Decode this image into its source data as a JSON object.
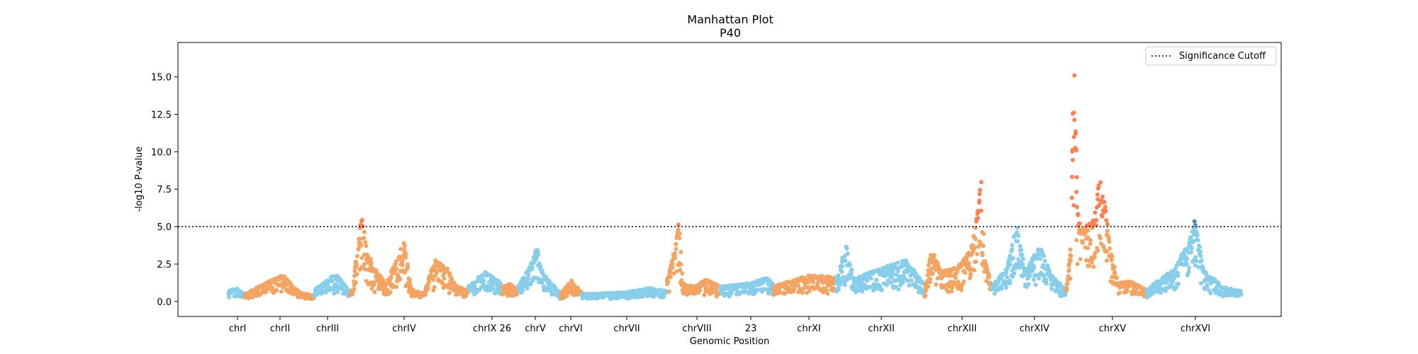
{
  "chart_data": {
    "type": "scatter",
    "title": "Manhattan Plot",
    "subtitle": "P40",
    "xlabel": "Genomic Position",
    "ylabel": "-log10 P-value",
    "ylim": [
      -1.0,
      17.3
    ],
    "yticks": [
      "0.0",
      "2.5",
      "5.0",
      "7.5",
      "10.0",
      "12.5",
      "15.0"
    ],
    "significance_cutoff": 5.0,
    "legend": {
      "label": "Significance Cutoff",
      "position": "top-right",
      "style": "dotted"
    },
    "grid": false,
    "colors": {
      "odd_chrom": "#87CEEB",
      "even_chrom": "#F4A460",
      "odd_significant": "#4682B4",
      "even_significant": "#FF7F50",
      "cutoff_line": "#000000"
    },
    "chromosomes": [
      {
        "label": "chrI",
        "base": 0.5,
        "profile": [
          [
            0,
            0.7
          ],
          [
            0.5,
            0.9
          ],
          [
            1,
            0.5
          ]
        ]
      },
      {
        "label": "chrII",
        "base": 0.5,
        "profile": [
          [
            0,
            0.5
          ],
          [
            0.3,
            1.2
          ],
          [
            0.55,
            1.8
          ],
          [
            0.8,
            0.6
          ],
          [
            1,
            0.4
          ]
        ]
      },
      {
        "label": "chrIII",
        "base": 0.5,
        "profile": [
          [
            0,
            0.8
          ],
          [
            0.3,
            1.3
          ],
          [
            0.6,
            1.9
          ],
          [
            1,
            0.6
          ]
        ]
      },
      {
        "label": "chrIV",
        "base": 0.6,
        "profile": [
          [
            0,
            0.5
          ],
          [
            0.05,
            3.0
          ],
          [
            0.09,
            5.7
          ],
          [
            0.14,
            3.2
          ],
          [
            0.22,
            2.0
          ],
          [
            0.3,
            1.2
          ],
          [
            0.4,
            3.0
          ],
          [
            0.45,
            4.0
          ],
          [
            0.52,
            0.8
          ],
          [
            0.62,
            0.5
          ],
          [
            0.72,
            2.8
          ],
          [
            0.82,
            2.2
          ],
          [
            0.9,
            1.0
          ],
          [
            1,
            0.8
          ]
        ]
      },
      {
        "label": "chrIX",
        "base": 0.5,
        "profile": [
          [
            0,
            1.0
          ],
          [
            0.5,
            2.0
          ],
          [
            1,
            1.2
          ]
        ]
      },
      {
        "label": "26",
        "base": 0.5,
        "profile": [
          [
            0,
            1.0
          ],
          [
            0.5,
            1.2
          ],
          [
            1,
            0.8
          ]
        ]
      },
      {
        "label": "chrV",
        "base": 0.5,
        "profile": [
          [
            0,
            1.0
          ],
          [
            0.3,
            2.5
          ],
          [
            0.45,
            3.6
          ],
          [
            0.6,
            1.8
          ],
          [
            1,
            0.6
          ]
        ]
      },
      {
        "label": "chrVI",
        "base": 0.5,
        "profile": [
          [
            0,
            0.5
          ],
          [
            0.5,
            1.4
          ],
          [
            1,
            0.6
          ]
        ]
      },
      {
        "label": "chrVII",
        "base": 0.4,
        "profile": [
          [
            0,
            0.5
          ],
          [
            0.5,
            0.6
          ],
          [
            0.8,
            0.9
          ],
          [
            1,
            0.7
          ]
        ]
      },
      {
        "label": "chrVIII",
        "base": 0.5,
        "profile": [
          [
            0,
            1.5
          ],
          [
            0.15,
            3.5
          ],
          [
            0.22,
            5.3
          ],
          [
            0.3,
            1.2
          ],
          [
            0.5,
            1.0
          ],
          [
            0.75,
            1.5
          ],
          [
            1,
            1.0
          ]
        ]
      },
      {
        "label": "23",
        "base": 0.5,
        "profile": [
          [
            0,
            1.0
          ],
          [
            0.5,
            1.2
          ],
          [
            0.9,
            1.6
          ],
          [
            1,
            1.2
          ]
        ]
      },
      {
        "label": "chrXI",
        "base": 0.6,
        "profile": [
          [
            0,
            1.0
          ],
          [
            0.3,
            1.4
          ],
          [
            0.6,
            1.8
          ],
          [
            1,
            1.6
          ]
        ]
      },
      {
        "label": "chrXII",
        "base": 0.6,
        "profile": [
          [
            0,
            1.4
          ],
          [
            0.12,
            3.8
          ],
          [
            0.2,
            1.5
          ],
          [
            0.5,
            2.2
          ],
          [
            0.8,
            2.8
          ],
          [
            1,
            1.2
          ]
        ]
      },
      {
        "label": "chrXIII",
        "base": 0.8,
        "profile": [
          [
            0,
            0.5
          ],
          [
            0.1,
            3.5
          ],
          [
            0.25,
            2.0
          ],
          [
            0.5,
            2.3
          ],
          [
            0.7,
            3.5
          ],
          [
            0.78,
            5.5
          ],
          [
            0.85,
            8.2
          ],
          [
            0.9,
            3.0
          ],
          [
            1,
            1.2
          ]
        ]
      },
      {
        "label": "chrXIV",
        "base": 0.6,
        "profile": [
          [
            0,
            1.0
          ],
          [
            0.2,
            2.2
          ],
          [
            0.35,
            5.3
          ],
          [
            0.45,
            2.0
          ],
          [
            0.65,
            3.8
          ],
          [
            0.8,
            1.8
          ],
          [
            1,
            0.8
          ]
        ]
      },
      {
        "label": "chrXV",
        "base": 1.5,
        "profile": [
          [
            0,
            0.8
          ],
          [
            0.05,
            3.5
          ],
          [
            0.1,
            16.2
          ],
          [
            0.14,
            6.0
          ],
          [
            0.2,
            4.8
          ],
          [
            0.35,
            5.5
          ],
          [
            0.42,
            8.2
          ],
          [
            0.5,
            6.0
          ],
          [
            0.55,
            3.5
          ],
          [
            0.65,
            1.2
          ],
          [
            0.8,
            1.4
          ],
          [
            1,
            0.8
          ]
        ]
      },
      {
        "label": "chrXVI",
        "base": 0.7,
        "profile": [
          [
            0,
            0.8
          ],
          [
            0.3,
            2.2
          ],
          [
            0.45,
            4.0
          ],
          [
            0.52,
            5.6
          ],
          [
            0.6,
            2.2
          ],
          [
            0.8,
            1.0
          ],
          [
            1,
            0.7
          ]
        ]
      }
    ],
    "x_tick_labels": [
      "chrI",
      "chrII",
      "chrIII",
      "chrIV",
      "chrIX 26",
      "chrV",
      "chrVI",
      "chrVII",
      "chrVIII",
      "23",
      "chrXI",
      "chrXII",
      "chrXIII",
      "chrXIV",
      "chrXV",
      "chrXVI"
    ]
  }
}
